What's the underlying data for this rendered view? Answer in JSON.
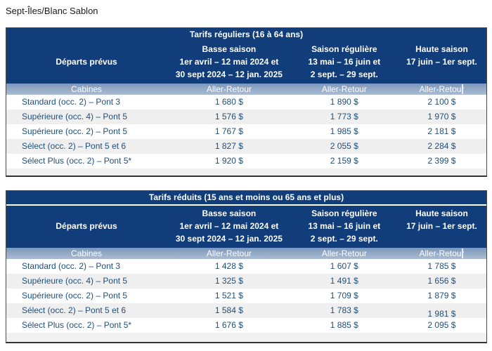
{
  "page_title": "Sept-Îles/Blanc Sablon",
  "colors": {
    "header_navy": "#113d7a",
    "subheader_blue_gray_top": "#7d98bb",
    "subheader_blue_gray_bottom": "#abbcd3",
    "row_alternate": "#efefef",
    "data_text_blue": "#1f4e79"
  },
  "tables": [
    {
      "title": "Tarifs réguliers (16 à 64 ans)",
      "col1_header": "Départs prévus",
      "columns": [
        {
          "season": "Basse saison",
          "dates": [
            "1er avril – 12 mai 2024 et",
            "30 sept 2024 – 12 jan. 2025"
          ]
        },
        {
          "season": "Saison régulière",
          "dates": [
            "13 mai – 16 juin et",
            "2 sept. – 29 sept."
          ]
        },
        {
          "season": "Haute saison",
          "dates": [
            "17 juin – 1er sept."
          ]
        }
      ],
      "subheader": {
        "col1": "Cabines",
        "fare": "Aller-Retour"
      },
      "rows": [
        {
          "cabin": "Standard (occ. 2) – Pont 3",
          "basse": "1 680 $",
          "reguliere": "1 890 $",
          "haute": "2 100 $"
        },
        {
          "cabin": "Supérieure (occ. 4) – Pont 5",
          "basse": "1 576 $",
          "reguliere": "1 773 $",
          "haute": "1 970 $"
        },
        {
          "cabin": "Supérieure (occ. 2) – Pont 5",
          "basse": "1 767 $",
          "reguliere": "1 985 $",
          "haute": "2 181 $"
        },
        {
          "cabin": "Sélect (occ. 2) – Pont 5 et 6",
          "basse": "1 827 $",
          "reguliere": "2 055 $",
          "haute": "2 284 $"
        },
        {
          "cabin": "Sélect Plus (occ. 2) – Pont 5*",
          "basse": "1 920 $",
          "reguliere": "2 159 $",
          "haute": "2 399 $"
        }
      ]
    },
    {
      "title": "Tarifs réduits (15 ans et moins ou 65 ans et plus)",
      "col1_header": "Départs prévus",
      "columns": [
        {
          "season": "Basse saison",
          "dates": [
            "1er avril – 12 mai 2024 et",
            "30 sept 2024 – 12 jan. 2025"
          ]
        },
        {
          "season": "Saison régulière",
          "dates": [
            "13 mai – 16 juin et",
            "2 sept. – 29 sept."
          ]
        },
        {
          "season": "Haute saison",
          "dates": [
            "17 juin – 1er sept."
          ]
        }
      ],
      "subheader": {
        "col1": "Cabines",
        "fare": "Aller-Retour"
      },
      "rows": [
        {
          "cabin": "Standard (occ. 2) – Pont 3",
          "basse": "1 428 $",
          "reguliere": "1 607 $",
          "haute": "1 785 $"
        },
        {
          "cabin": "Supérieure (occ. 4) – Pont 5",
          "basse": "1 325 $",
          "reguliere": "1 491 $",
          "haute": "1 656 $"
        },
        {
          "cabin": "Supérieure (occ. 2) – Pont 5",
          "basse": "1 521 $",
          "reguliere": "1 709 $",
          "haute": "1 879 $"
        },
        {
          "cabin": "Sélect (occ. 2) – Pont 5 et 6",
          "basse": "1 584 $",
          "reguliere": "1 783 $",
          "haute": "1 981 $"
        },
        {
          "cabin": "Sélect Plus (occ. 2) – Pont 5*",
          "basse": "1 676 $",
          "reguliere": "1 885 $",
          "haute": "2 095 $"
        }
      ]
    }
  ]
}
